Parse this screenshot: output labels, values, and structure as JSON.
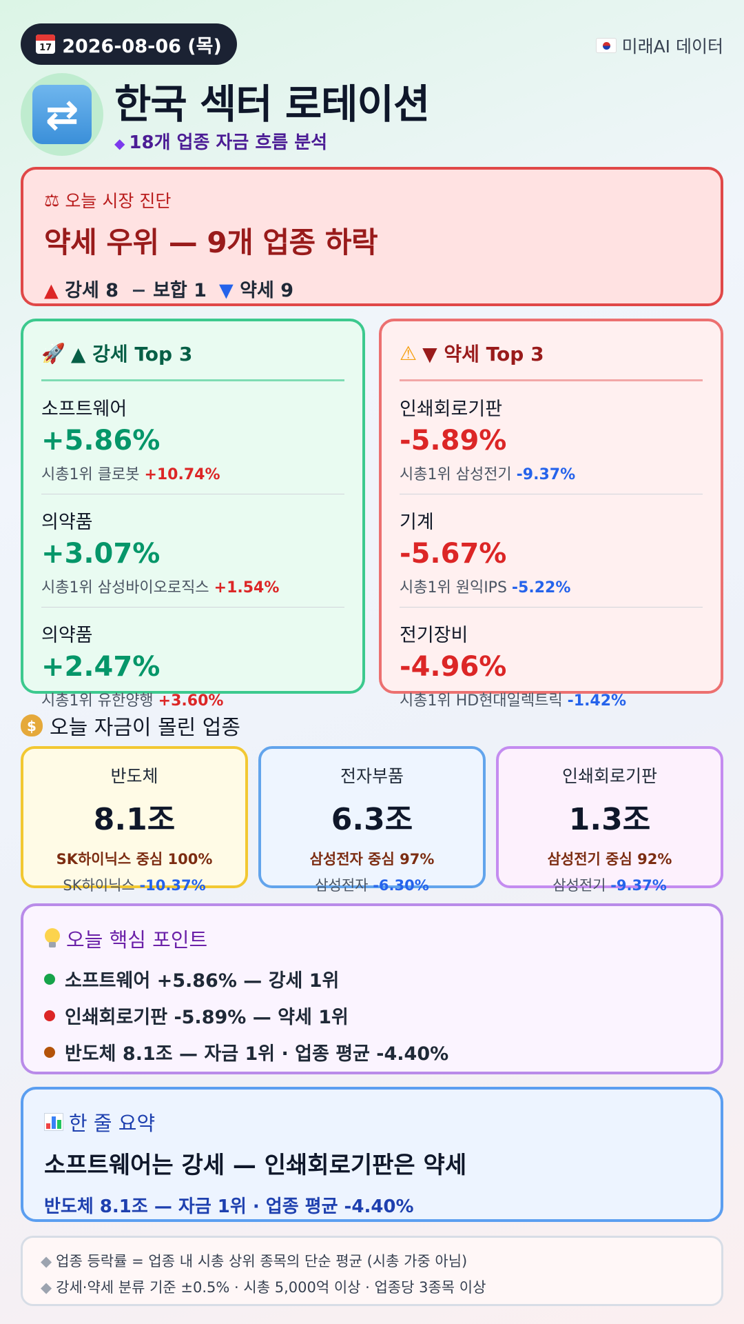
{
  "header": {
    "date": "2026-08-06 (목)",
    "calendar_text": "17",
    "source": "미래AI 데이터",
    "title": "한국 섹터 로테이션",
    "subtitle": "18개 업종 자금 흐름 분석"
  },
  "diagnosis": {
    "label": "오늘 시장 진단",
    "title": "약세 우위 — 9개 업종 하락",
    "up_label": "강세 8",
    "flat_label": "보합 1",
    "down_label": "약세 9"
  },
  "top_up": {
    "heading": "▲ 강세 Top 3",
    "items": [
      {
        "name": "소프트웨어",
        "pct": "+5.86%",
        "lead_prefix": "시총1위 클로봇",
        "lead_change": "+10.74%"
      },
      {
        "name": "의약품",
        "pct": "+3.07%",
        "lead_prefix": "시총1위 삼성바이오로직스",
        "lead_change": "+1.54%"
      },
      {
        "name": "의약품",
        "pct": "+2.47%",
        "lead_prefix": "시총1위 유한양행",
        "lead_change": "+3.60%"
      }
    ]
  },
  "top_down": {
    "heading": "▼ 약세 Top 3",
    "items": [
      {
        "name": "인쇄회로기판",
        "pct": "-5.89%",
        "lead_prefix": "시총1위 삼성전기",
        "lead_change": "-9.37%"
      },
      {
        "name": "기계",
        "pct": "-5.67%",
        "lead_prefix": "시총1위 원익IPS",
        "lead_change": "-5.22%"
      },
      {
        "name": "전기장비",
        "pct": "-4.96%",
        "lead_prefix": "시총1위 HD현대일렉트릭",
        "lead_change": "-1.42%"
      }
    ]
  },
  "money": {
    "heading": "오늘 자금이 몰린 업종",
    "cards": [
      {
        "name": "반도체",
        "value": "8.1조",
        "concentration": "SK하이닉스 중심 100%",
        "lead_name": "SK하이닉스",
        "lead_change": "-10.37%"
      },
      {
        "name": "전자부품",
        "value": "6.3조",
        "concentration": "삼성전자 중심 97%",
        "lead_name": "삼성전자",
        "lead_change": "-6.30%"
      },
      {
        "name": "인쇄회로기판",
        "value": "1.3조",
        "concentration": "삼성전기 중심 92%",
        "lead_name": "삼성전기",
        "lead_change": "-9.37%"
      }
    ]
  },
  "key_points": {
    "heading": "오늘 핵심 포인트",
    "items": [
      {
        "text": "소프트웨어 +5.86% — 강세 1위",
        "color": "#16a34a"
      },
      {
        "text": "인쇄회로기판 -5.89% — 약세 1위",
        "color": "#dc2626"
      },
      {
        "text": "반도체 8.1조 — 자금 1위 · 업종 평균 -4.40%",
        "color": "#b45309"
      }
    ]
  },
  "summary": {
    "heading": "한 줄 요약",
    "title": "소프트웨어는 강세 — 인쇄회로기판은 약세",
    "sub": "반도체 8.1조 — 자금 1위 · 업종 평균 -4.40%"
  },
  "notes": [
    "업종 등락률 = 업종 내 시총 상위 종목의 단순 평균 (시총 가중 아님)",
    "강세·약세 분류 기준 ±0.5% · 시총 5,000억 이상 · 업종당 3종목 이상"
  ]
}
